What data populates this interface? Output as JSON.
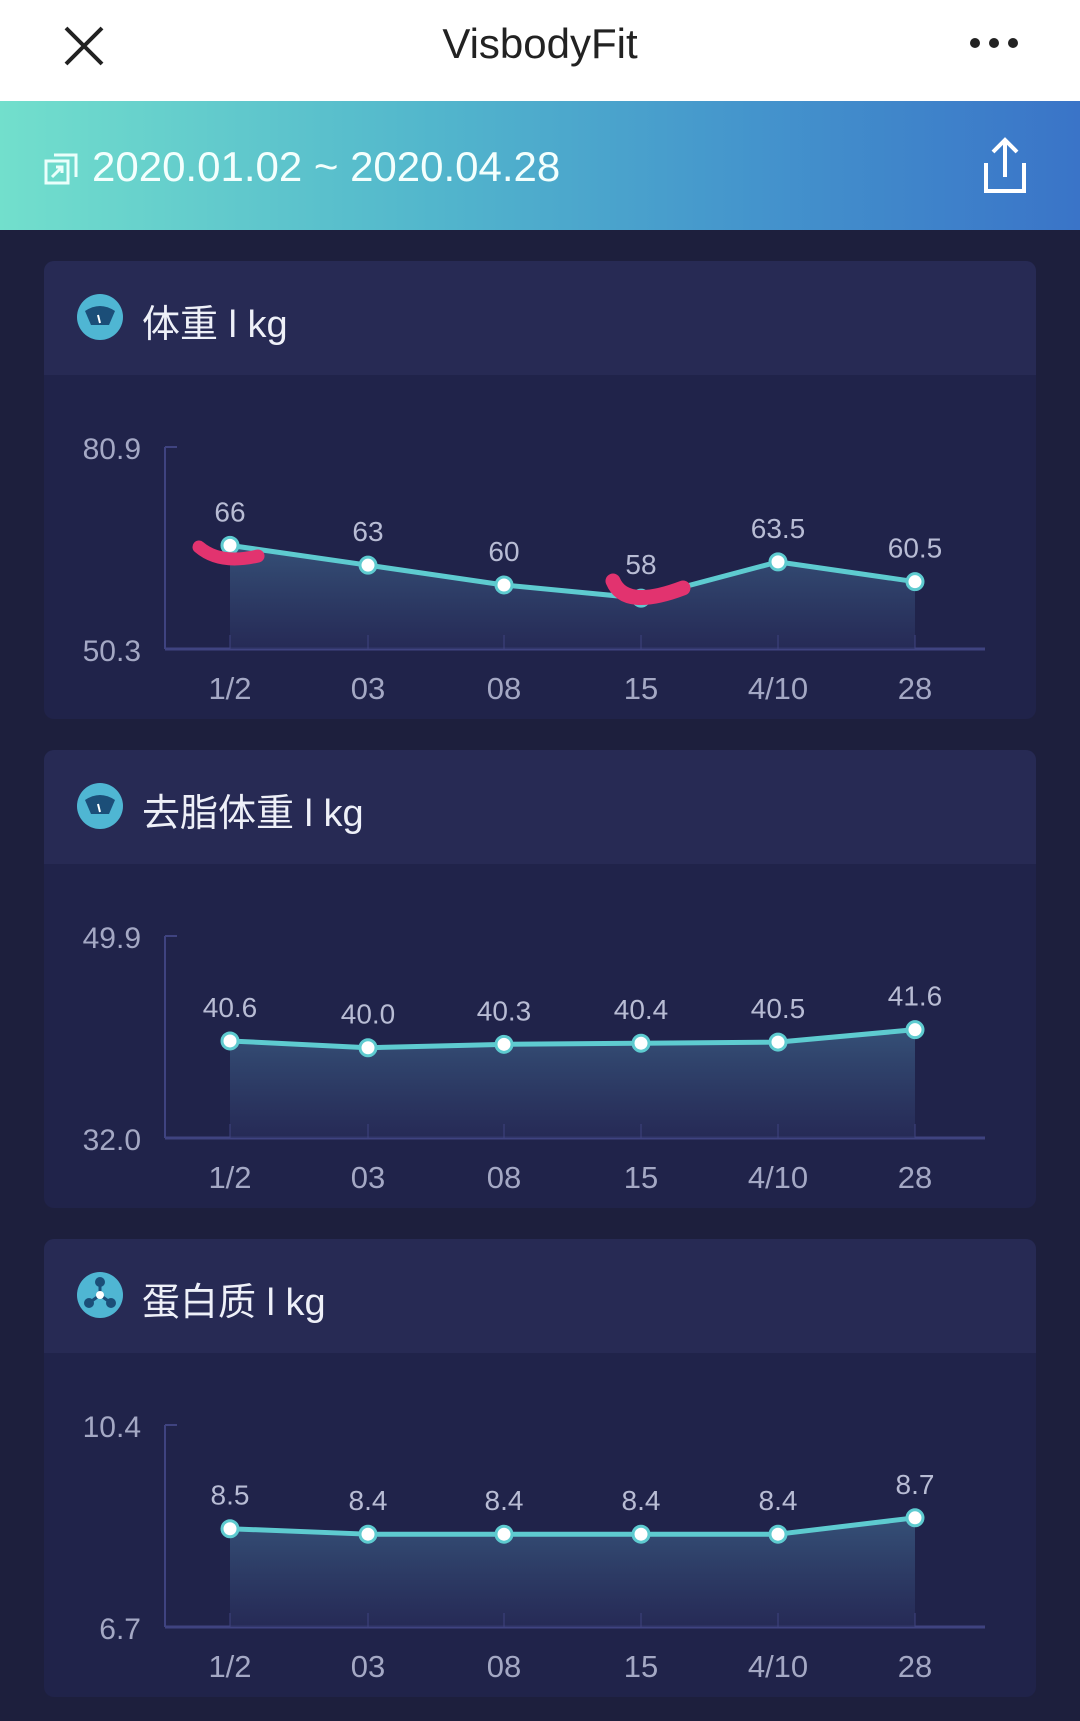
{
  "header": {
    "title": "VisbodyFit",
    "close_icon": "close-icon",
    "more_icon": "more-icon"
  },
  "range": {
    "text": "2020.01.02 ~ 2020.04.28",
    "icon": "date-range-icon",
    "share_icon": "share-icon"
  },
  "colors": {
    "line": "#5ecbd0",
    "band_start": "#72dfcc",
    "band_end": "#3a74c8",
    "annotation": "#e2336f"
  },
  "chart_data": [
    {
      "type": "area",
      "title": "体重 l kg",
      "icon": "scale-icon",
      "categories": [
        "1/2",
        "03",
        "08",
        "15",
        "4/10",
        "28"
      ],
      "values": [
        66,
        63,
        60,
        58,
        63.5,
        60.5
      ],
      "labels": [
        "66",
        "63",
        "60",
        "58",
        "63.5",
        "60.5"
      ],
      "ylim": [
        50.3,
        80.9
      ],
      "ytick_labels": [
        "80.9",
        "50.3"
      ]
    },
    {
      "type": "area",
      "title": "去脂体重 l kg",
      "icon": "scale-icon",
      "categories": [
        "1/2",
        "03",
        "08",
        "15",
        "4/10",
        "28"
      ],
      "values": [
        40.6,
        40.0,
        40.3,
        40.4,
        40.5,
        41.6
      ],
      "labels": [
        "40.6",
        "40.0",
        "40.3",
        "40.4",
        "40.5",
        "41.6"
      ],
      "ylim": [
        32.0,
        49.9
      ],
      "ytick_labels": [
        "49.9",
        "32.0"
      ]
    },
    {
      "type": "area",
      "title": "蛋白质 l kg",
      "icon": "molecule-icon",
      "categories": [
        "1/2",
        "03",
        "08",
        "15",
        "4/10",
        "28"
      ],
      "values": [
        8.5,
        8.4,
        8.4,
        8.4,
        8.4,
        8.7
      ],
      "labels": [
        "8.5",
        "8.4",
        "8.4",
        "8.4",
        "8.4",
        "8.7"
      ],
      "ylim": [
        6.7,
        10.4
      ],
      "ytick_labels": [
        "10.4",
        "6.7"
      ]
    }
  ]
}
